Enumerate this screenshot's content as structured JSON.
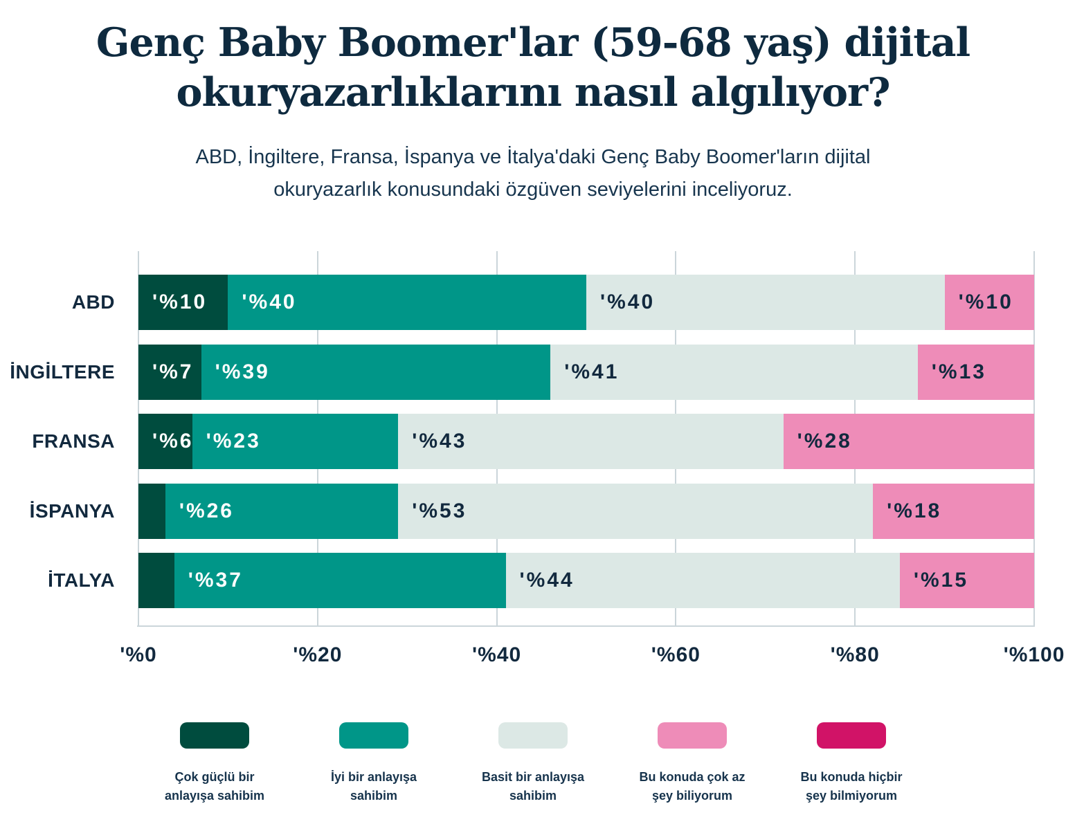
{
  "title": "Genç Baby Boomer'lar (59-68 yaş) dijital okuryazarlıklarını nasıl algılıyor?",
  "subtitle": "ABD, İngiltere, Fransa, İspanya ve İtalya'daki Genç Baby Boomer'ların dijital okuryazarlık konusundaki özgüven seviyelerini inceliyoruz.",
  "colors": {
    "background": "#ffffff",
    "title_text": "#0e2a3f",
    "subtitle_text": "#17354e",
    "axis_text": "#12293e",
    "gridline": "#cbd5da",
    "strong_green": "#004c3e",
    "teal": "#009688",
    "light_gray_green": "#dce8e5",
    "pink": "#ee8cb8",
    "magenta": "#d11367"
  },
  "chart_data": {
    "type": "bar",
    "orientation": "horizontal",
    "stacked": true,
    "grid": true,
    "legend_position": "bottom",
    "xlim": [
      0,
      100
    ],
    "x_ticks": [
      0,
      20,
      40,
      60,
      80,
      100
    ],
    "x_tick_label_prefix": "'%",
    "value_label_prefix": "'%",
    "value_label_min": 6,
    "categories": [
      "ABD",
      "İNGİLTERE",
      "FRANSA",
      "İSPANYA",
      "İTALYA"
    ],
    "series": [
      {
        "name": "Çok güçlü bir anlayışa sahibim",
        "legend_lines": "Çok güçlü bir\nanlayışa sahibim",
        "color": "#004c3e",
        "label_color": "#ffffff",
        "values": [
          10,
          7,
          6,
          3,
          4
        ]
      },
      {
        "name": "İyi bir anlayışa sahibim",
        "legend_lines": "İyi bir anlayışa\nsahibim",
        "color": "#009688",
        "label_color": "#ffffff",
        "values": [
          40,
          39,
          23,
          26,
          37
        ]
      },
      {
        "name": "Basit bir anlayışa sahibim",
        "legend_lines": "Basit bir anlayışa\nsahibim",
        "color": "#dce8e5",
        "label_color": "#12293e",
        "values": [
          40,
          41,
          43,
          53,
          44
        ]
      },
      {
        "name": "Bu konuda çok az şey biliyorum",
        "legend_lines": "Bu konuda çok az\nşey biliyorum",
        "color": "#ee8cb8",
        "label_color": "#12293e",
        "values": [
          10,
          13,
          28,
          18,
          15
        ]
      },
      {
        "name": "Bu konuda hiçbir şey bilmiyorum",
        "legend_lines": "Bu konuda hiçbir\nşey bilmiyorum",
        "color": "#d11367",
        "label_color": "#ffffff",
        "values": [
          0,
          0,
          0,
          0,
          0
        ]
      }
    ]
  }
}
